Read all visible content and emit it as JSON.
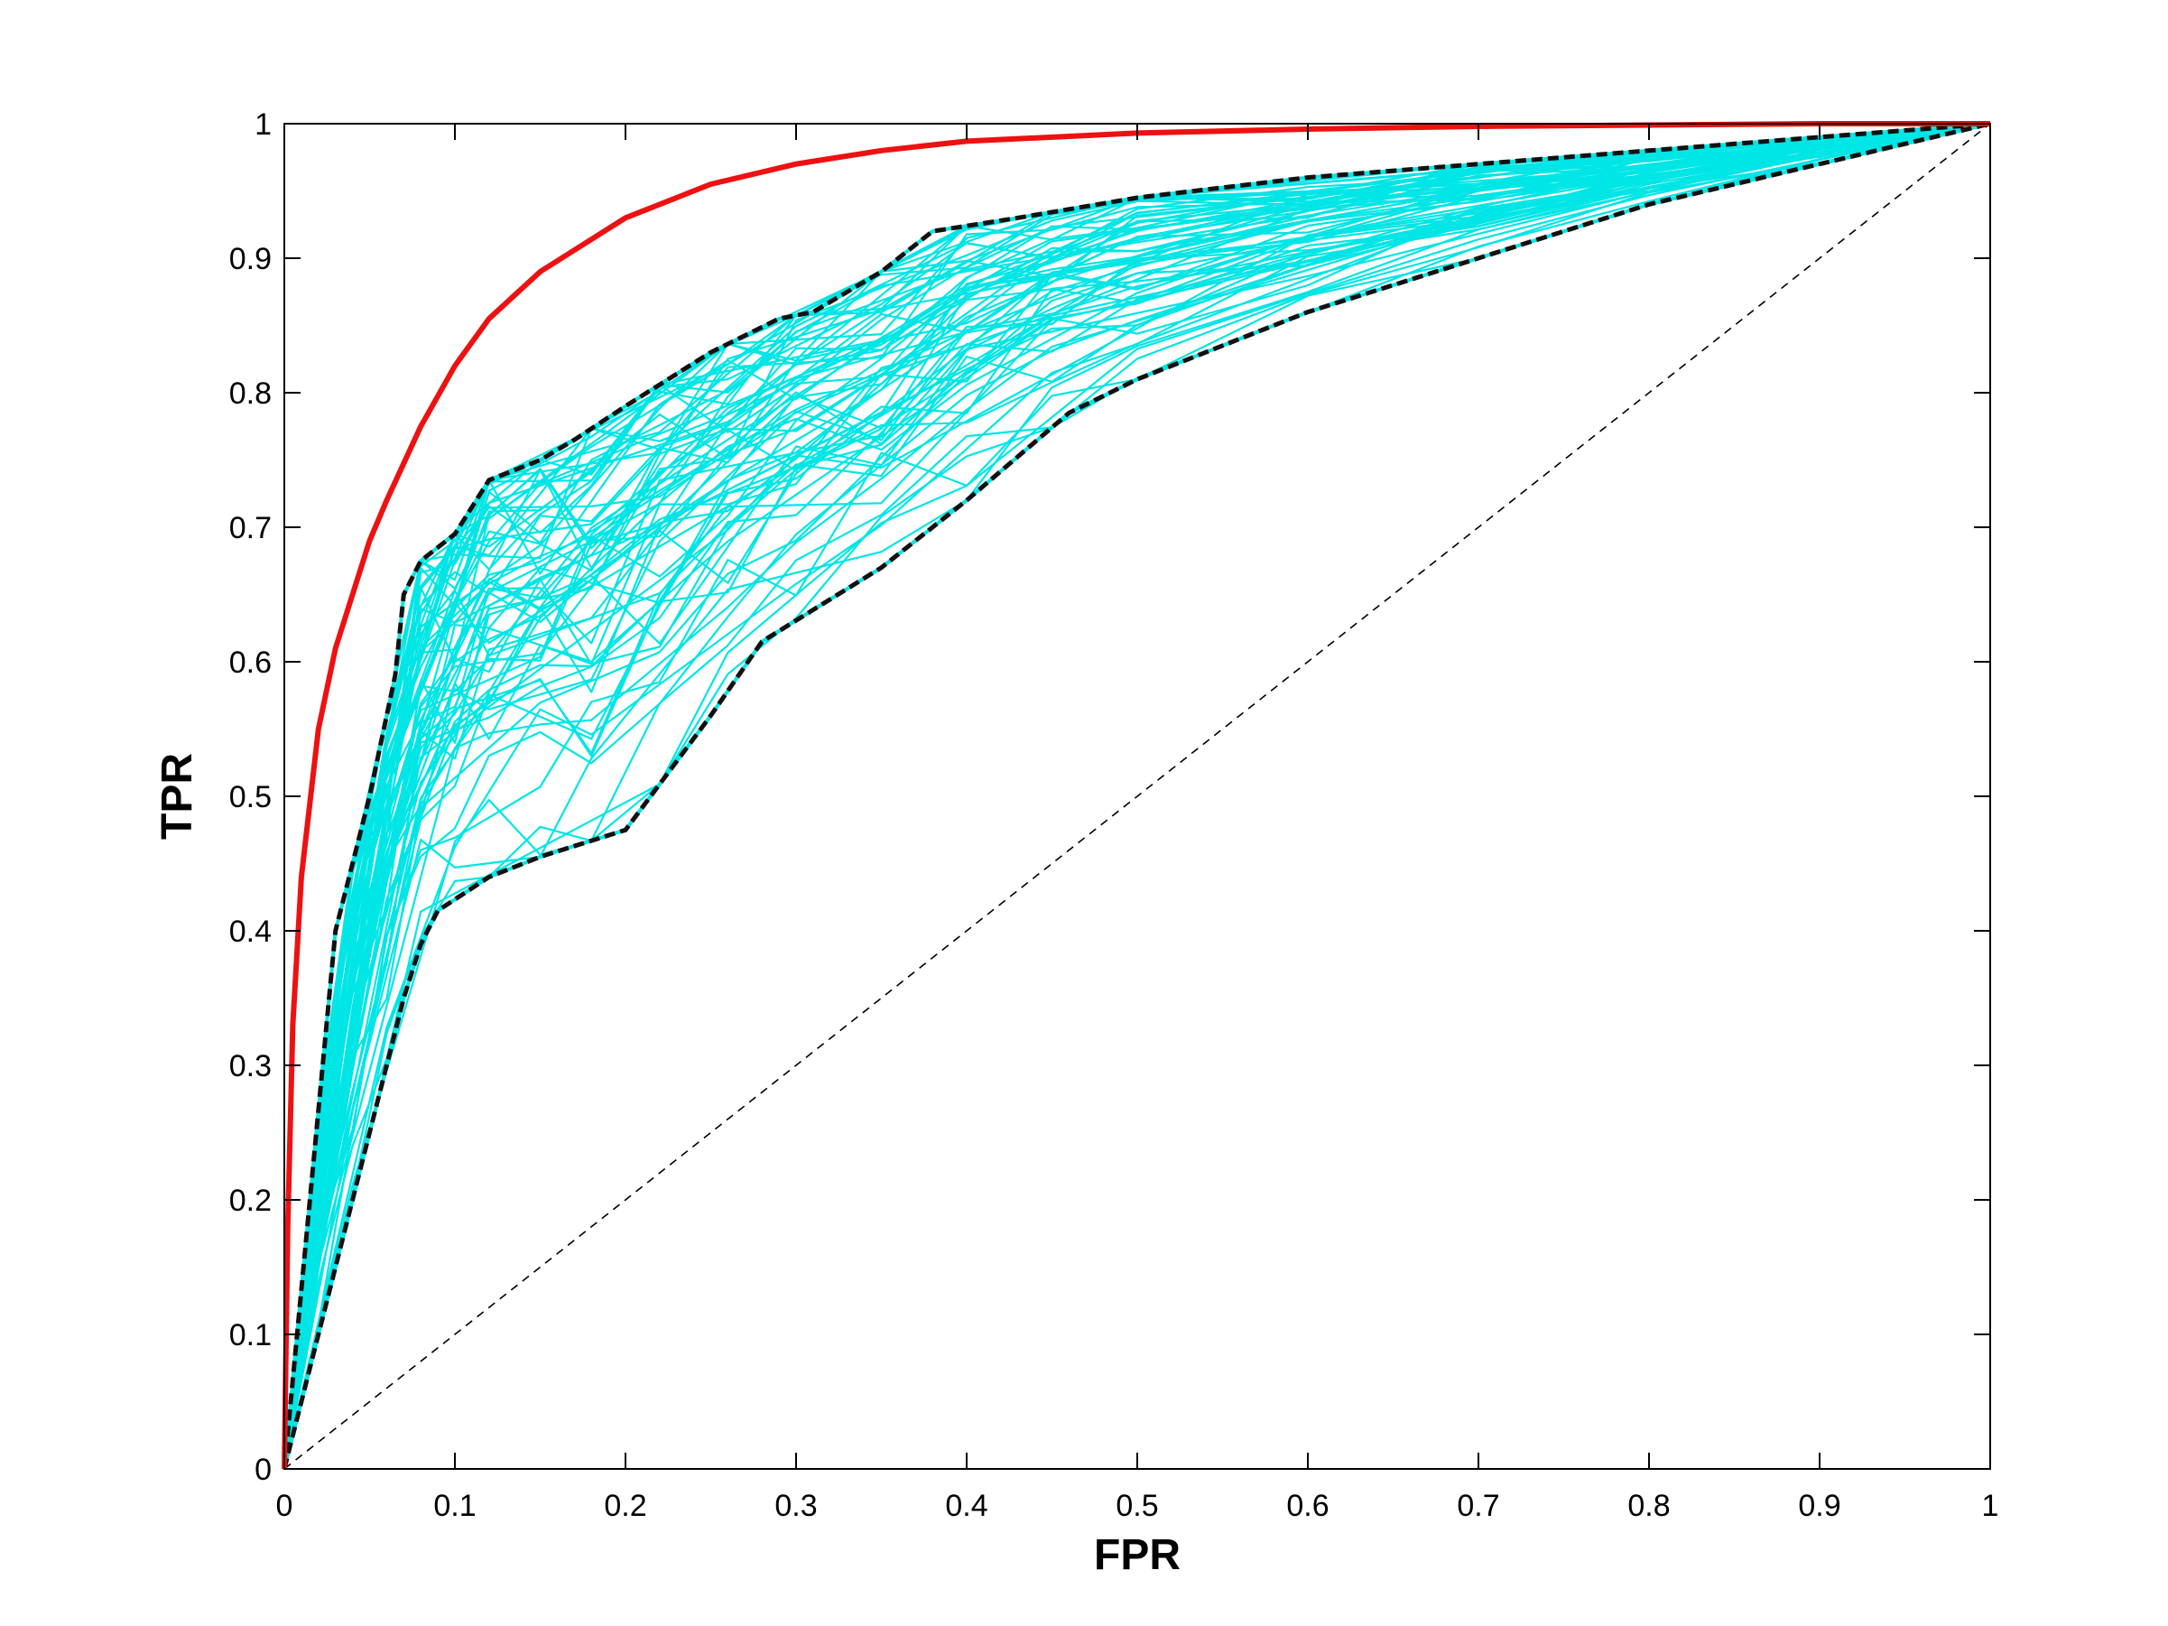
{
  "chart_data": {
    "type": "line",
    "xlabel": "FPR",
    "ylabel": "TPR",
    "xlim": [
      0,
      1
    ],
    "ylim": [
      0,
      1
    ],
    "xticks": [
      "0",
      "0.1",
      "0.2",
      "0.3",
      "0.4",
      "0.5",
      "0.6",
      "0.7",
      "0.8",
      "0.9",
      "1"
    ],
    "yticks": [
      "0",
      "0.1",
      "0.2",
      "0.3",
      "0.4",
      "0.5",
      "0.6",
      "0.7",
      "0.8",
      "0.9",
      "1"
    ],
    "grid": false,
    "legend": "none",
    "colors": {
      "red_curve": "#ee1111",
      "cyan_curves": "#00e5e5",
      "envelope": "#111111",
      "diagonal": "#000000"
    },
    "series": [
      {
        "role": "red-roc-curve",
        "x": [
          0,
          0.002,
          0.005,
          0.01,
          0.02,
          0.03,
          0.04,
          0.05,
          0.06,
          0.08,
          0.1,
          0.12,
          0.15,
          0.2,
          0.25,
          0.3,
          0.35,
          0.4,
          0.5,
          0.6,
          0.7,
          0.8,
          0.9,
          1
        ],
        "y": [
          0,
          0.18,
          0.33,
          0.44,
          0.55,
          0.61,
          0.65,
          0.69,
          0.72,
          0.775,
          0.82,
          0.855,
          0.89,
          0.93,
          0.955,
          0.97,
          0.98,
          0.987,
          0.993,
          0.996,
          0.998,
          0.999,
          1.0,
          1.0
        ]
      },
      {
        "role": "upper-envelope",
        "x": [
          0,
          0.03,
          0.05,
          0.065,
          0.07,
          0.08,
          0.1,
          0.12,
          0.15,
          0.17,
          0.2,
          0.25,
          0.29,
          0.31,
          0.35,
          0.38,
          0.43,
          0.5,
          0.6,
          0.7,
          0.8,
          0.9,
          1
        ],
        "y": [
          0,
          0.4,
          0.5,
          0.59,
          0.65,
          0.675,
          0.695,
          0.735,
          0.75,
          0.765,
          0.79,
          0.83,
          0.855,
          0.86,
          0.89,
          0.92,
          0.93,
          0.945,
          0.96,
          0.97,
          0.98,
          0.99,
          1.0
        ]
      },
      {
        "role": "lower-envelope",
        "x": [
          0,
          0.02,
          0.05,
          0.07,
          0.08,
          0.09,
          0.12,
          0.15,
          0.2,
          0.25,
          0.28,
          0.35,
          0.4,
          0.46,
          0.5,
          0.6,
          0.7,
          0.8,
          0.9,
          1
        ],
        "y": [
          0,
          0.1,
          0.25,
          0.35,
          0.39,
          0.415,
          0.44,
          0.455,
          0.475,
          0.56,
          0.615,
          0.67,
          0.72,
          0.785,
          0.81,
          0.86,
          0.9,
          0.94,
          0.97,
          1.0
        ]
      },
      {
        "role": "chance-diagonal",
        "x": [
          0,
          1
        ],
        "y": [
          0,
          1
        ]
      }
    ]
  }
}
